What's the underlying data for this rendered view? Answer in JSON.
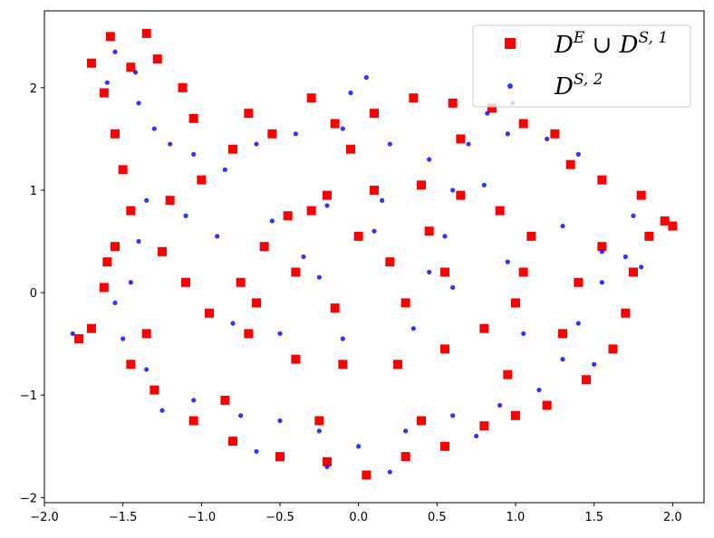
{
  "chart_data": {
    "type": "scatter",
    "title": "",
    "xlabel": "",
    "ylabel": "",
    "xlim": [
      -2.0,
      2.2
    ],
    "ylim": [
      -2.05,
      2.75
    ],
    "xticks": [
      -2.0,
      -1.5,
      -1.0,
      -0.5,
      0.0,
      0.5,
      1.0,
      1.5,
      2.0
    ],
    "xtick_labels": [
      "−2.0",
      "−1.5",
      "−1.0",
      "−0.5",
      "0.0",
      "0.5",
      "1.0",
      "1.5",
      "2.0"
    ],
    "yticks": [
      -2,
      -1,
      0,
      1,
      2
    ],
    "ytick_labels": [
      "−2",
      "−1",
      "0",
      "1",
      "2"
    ],
    "grid": false,
    "legend_position": "top-right",
    "series": [
      {
        "name": "D^E ∪ D^{S,1}",
        "label_base1": "D",
        "label_sup1": "E",
        "label_union": " ∪ ",
        "label_base2": "D",
        "label_sup2": "S, 1",
        "color": "#ff0000",
        "marker": "square",
        "points": [
          [
            -1.58,
            2.5
          ],
          [
            -1.35,
            2.53
          ],
          [
            -1.7,
            2.24
          ],
          [
            -1.28,
            2.28
          ],
          [
            -1.12,
            2.0
          ],
          [
            -1.45,
            2.2
          ],
          [
            -1.62,
            1.95
          ],
          [
            -1.55,
            1.55
          ],
          [
            -1.5,
            1.2
          ],
          [
            -1.45,
            0.8
          ],
          [
            -1.55,
            0.45
          ],
          [
            -1.62,
            0.05
          ],
          [
            -1.7,
            -0.35
          ],
          [
            -1.78,
            -0.45
          ],
          [
            -1.45,
            -0.7
          ],
          [
            -1.3,
            -0.95
          ],
          [
            -1.05,
            -1.25
          ],
          [
            -0.8,
            -1.45
          ],
          [
            -0.5,
            -1.6
          ],
          [
            -0.2,
            -1.65
          ],
          [
            0.05,
            -1.78
          ],
          [
            0.3,
            -1.6
          ],
          [
            0.55,
            -1.5
          ],
          [
            0.8,
            -1.3
          ],
          [
            1.0,
            -1.2
          ],
          [
            1.2,
            -1.1
          ],
          [
            1.45,
            -0.85
          ],
          [
            1.62,
            -0.55
          ],
          [
            1.7,
            -0.2
          ],
          [
            1.75,
            0.2
          ],
          [
            1.85,
            0.55
          ],
          [
            1.95,
            0.7
          ],
          [
            2.0,
            0.65
          ],
          [
            1.8,
            0.95
          ],
          [
            1.55,
            1.1
          ],
          [
            1.35,
            1.25
          ],
          [
            1.25,
            1.55
          ],
          [
            1.05,
            1.65
          ],
          [
            0.85,
            1.8
          ],
          [
            0.6,
            1.85
          ],
          [
            0.35,
            1.9
          ],
          [
            0.1,
            1.75
          ],
          [
            -0.15,
            1.65
          ],
          [
            -0.3,
            1.9
          ],
          [
            -0.55,
            1.55
          ],
          [
            -0.8,
            1.4
          ],
          [
            -1.0,
            1.1
          ],
          [
            -1.2,
            0.9
          ],
          [
            -1.25,
            0.4
          ],
          [
            -1.1,
            0.1
          ],
          [
            -0.95,
            -0.2
          ],
          [
            -0.7,
            -0.4
          ],
          [
            -0.4,
            -0.65
          ],
          [
            -0.1,
            -0.7
          ],
          [
            0.25,
            -0.7
          ],
          [
            0.55,
            -0.55
          ],
          [
            0.8,
            -0.35
          ],
          [
            1.0,
            -0.1
          ],
          [
            1.05,
            0.2
          ],
          [
            1.1,
            0.55
          ],
          [
            0.9,
            0.8
          ],
          [
            0.65,
            0.95
          ],
          [
            0.4,
            1.05
          ],
          [
            0.1,
            1.0
          ],
          [
            -0.2,
            0.95
          ],
          [
            -0.45,
            0.75
          ],
          [
            -0.6,
            0.45
          ],
          [
            -0.75,
            0.1
          ],
          [
            -0.65,
            -0.1
          ],
          [
            -0.3,
            0.8
          ],
          [
            0.0,
            0.55
          ],
          [
            0.45,
            0.6
          ],
          [
            0.55,
            0.2
          ],
          [
            0.3,
            -0.1
          ],
          [
            -0.15,
            -0.15
          ],
          [
            -0.4,
            0.2
          ],
          [
            0.2,
            0.3
          ],
          [
            -1.6,
            0.3
          ],
          [
            -1.35,
            -0.4
          ],
          [
            1.4,
            0.1
          ],
          [
            1.3,
            -0.4
          ],
          [
            1.55,
            0.45
          ],
          [
            0.95,
            -0.8
          ],
          [
            -0.85,
            -1.05
          ],
          [
            -0.25,
            -1.25
          ],
          [
            0.4,
            -1.25
          ],
          [
            0.65,
            1.5
          ],
          [
            -0.05,
            1.4
          ],
          [
            -0.7,
            1.75
          ],
          [
            -1.05,
            1.7
          ]
        ]
      },
      {
        "name": "D^{S,2}",
        "label_base1": "D",
        "label_sup1": "S, 2",
        "color": "#0000ff",
        "marker": "circle",
        "points": [
          [
            -1.55,
            2.35
          ],
          [
            -1.42,
            2.15
          ],
          [
            -1.4,
            1.85
          ],
          [
            -1.3,
            1.6
          ],
          [
            -1.2,
            1.45
          ],
          [
            -1.05,
            1.35
          ],
          [
            -0.85,
            1.2
          ],
          [
            -0.65,
            1.45
          ],
          [
            -0.4,
            1.55
          ],
          [
            -0.1,
            1.6
          ],
          [
            0.2,
            1.45
          ],
          [
            0.45,
            1.3
          ],
          [
            0.7,
            1.45
          ],
          [
            0.95,
            1.55
          ],
          [
            1.2,
            1.5
          ],
          [
            1.4,
            1.35
          ],
          [
            0.8,
            1.05
          ],
          [
            0.6,
            1.0
          ],
          [
            1.3,
            0.65
          ],
          [
            1.55,
            0.4
          ],
          [
            1.7,
            0.35
          ],
          [
            1.8,
            0.25
          ],
          [
            1.55,
            0.1
          ],
          [
            1.4,
            -0.3
          ],
          [
            1.3,
            -0.65
          ],
          [
            1.15,
            -0.95
          ],
          [
            0.9,
            -1.1
          ],
          [
            0.6,
            -1.2
          ],
          [
            0.3,
            -1.35
          ],
          [
            0.0,
            -1.5
          ],
          [
            -0.25,
            -1.35
          ],
          [
            -0.5,
            -1.25
          ],
          [
            -0.75,
            -1.2
          ],
          [
            -1.05,
            -1.05
          ],
          [
            -1.35,
            -0.75
          ],
          [
            -1.5,
            -0.45
          ],
          [
            -1.55,
            -0.1
          ],
          [
            -1.45,
            0.1
          ],
          [
            -1.4,
            0.5
          ],
          [
            -1.35,
            0.9
          ],
          [
            -1.82,
            -0.4
          ],
          [
            -1.1,
            0.75
          ],
          [
            -0.9,
            0.55
          ],
          [
            -0.55,
            0.7
          ],
          [
            -0.2,
            0.85
          ],
          [
            0.15,
            0.9
          ],
          [
            0.55,
            0.55
          ],
          [
            0.6,
            0.05
          ],
          [
            0.35,
            -0.35
          ],
          [
            -0.1,
            -0.45
          ],
          [
            -0.5,
            -0.4
          ],
          [
            -0.8,
            -0.3
          ],
          [
            -0.25,
            0.15
          ],
          [
            0.1,
            0.6
          ],
          [
            1.05,
            -0.4
          ],
          [
            0.95,
            0.3
          ],
          [
            -1.25,
            -1.15
          ],
          [
            0.75,
            -1.4
          ],
          [
            0.05,
            2.1
          ],
          [
            0.98,
            1.85
          ],
          [
            0.82,
            1.75
          ],
          [
            -0.05,
            1.95
          ],
          [
            -1.6,
            2.05
          ],
          [
            1.75,
            0.75
          ],
          [
            -0.2,
            -1.7
          ],
          [
            0.2,
            -1.75
          ],
          [
            -0.65,
            -1.55
          ],
          [
            1.5,
            -0.7
          ],
          [
            0.45,
            0.2
          ],
          [
            -0.35,
            0.35
          ]
        ]
      }
    ]
  }
}
